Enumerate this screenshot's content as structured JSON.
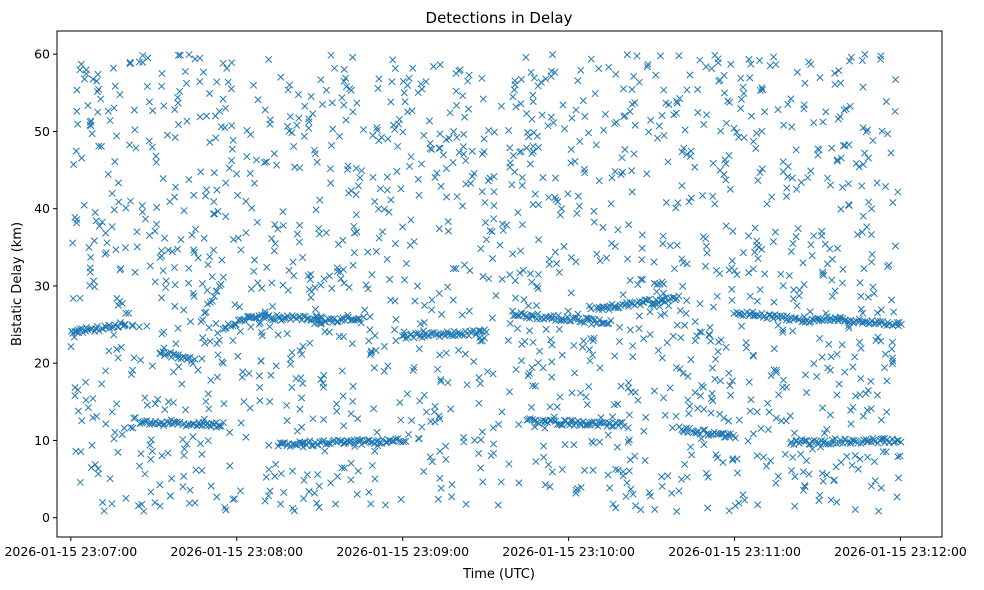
{
  "chart_data": {
    "type": "scatter",
    "title": "Detections in Delay",
    "xlabel": "Time (UTC)",
    "ylabel": "Bistatic Delay (km)",
    "x_ticks": [
      "2026-01-15 23:07:00",
      "2026-01-15 23:08:00",
      "2026-01-15 23:09:00",
      "2026-01-15 23:10:00",
      "2026-01-15 23:11:00",
      "2026-01-15 23:12:00"
    ],
    "xlim": [
      "2026-01-15 23:06:55",
      "2026-01-15 23:12:15"
    ],
    "y_ticks": [
      0,
      10,
      20,
      30,
      40,
      50,
      60
    ],
    "ylim": [
      -2.5,
      63
    ],
    "grid": false,
    "marker": "x",
    "color": "#1f77b4",
    "x_range": [
      "2026-01-15 23:07:00",
      "2026-01-15 23:12:00"
    ],
    "approx_point_count": 2200,
    "tracks": [
      {
        "x_start": "2026-01-15 23:07:00",
        "x_end": "2026-01-15 23:07:20",
        "y_start": 24.0,
        "y_end": 25.0
      },
      {
        "x_start": "2026-01-15 23:07:25",
        "x_end": "2026-01-15 23:07:55",
        "y_start": 12.3,
        "y_end": 12.0
      },
      {
        "x_start": "2026-01-15 23:07:32",
        "x_end": "2026-01-15 23:07:45",
        "y_start": 21.5,
        "y_end": 20.2
      },
      {
        "x_start": "2026-01-15 23:07:55",
        "x_end": "2026-01-15 23:08:05",
        "y_start": 24.5,
        "y_end": 26.0
      },
      {
        "x_start": "2026-01-15 23:07:47",
        "x_end": "2026-01-15 23:07:55",
        "y_start": 25.5,
        "y_end": 31.0
      },
      {
        "x_start": "2026-01-15 23:08:05",
        "x_end": "2026-01-15 23:08:45",
        "y_start": 26.0,
        "y_end": 25.5
      },
      {
        "x_start": "2026-01-15 23:08:15",
        "x_end": "2026-01-15 23:09:00",
        "y_start": 9.5,
        "y_end": 10.0
      },
      {
        "x_start": "2026-01-15 23:09:00",
        "x_end": "2026-01-15 23:09:30",
        "y_start": 23.5,
        "y_end": 24.0
      },
      {
        "x_start": "2026-01-15 23:09:40",
        "x_end": "2026-01-15 23:10:15",
        "y_start": 26.3,
        "y_end": 25.3
      },
      {
        "x_start": "2026-01-15 23:09:45",
        "x_end": "2026-01-15 23:10:20",
        "y_start": 12.5,
        "y_end": 12.0
      },
      {
        "x_start": "2026-01-15 23:10:10",
        "x_end": "2026-01-15 23:10:40",
        "y_start": 27.0,
        "y_end": 28.5
      },
      {
        "x_start": "2026-01-15 23:10:40",
        "x_end": "2026-01-15 23:11:00",
        "y_start": 11.5,
        "y_end": 10.5
      },
      {
        "x_start": "2026-01-15 23:11:00",
        "x_end": "2026-01-15 23:11:30",
        "y_start": 26.5,
        "y_end": 25.5
      },
      {
        "x_start": "2026-01-15 23:11:20",
        "x_end": "2026-01-15 23:12:00",
        "y_start": 9.8,
        "y_end": 10.0
      },
      {
        "x_start": "2026-01-15 23:11:30",
        "x_end": "2026-01-15 23:12:00",
        "y_start": 25.8,
        "y_end": 25.0
      }
    ]
  }
}
